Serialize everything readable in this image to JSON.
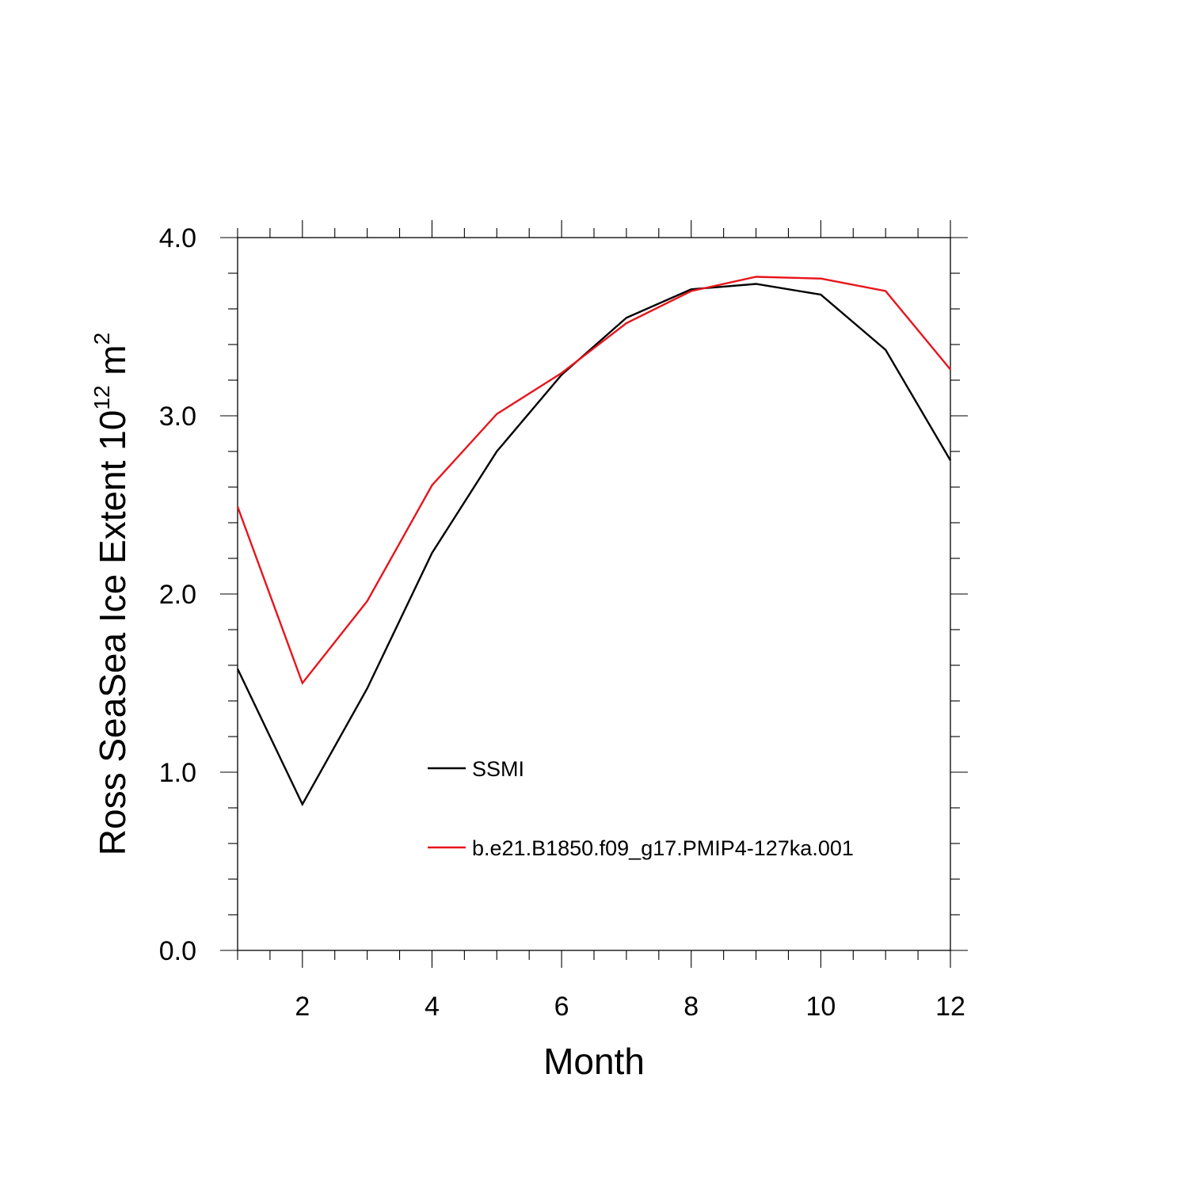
{
  "chart_data": {
    "type": "line",
    "title": "",
    "xlabel": "Month",
    "ylabel": {
      "prefix": "Ross SeaSea Ice Extent 10",
      "superscript": "12",
      "unit": " m",
      "unit_superscript": "2"
    },
    "xlim": [
      1,
      12
    ],
    "ylim": [
      0,
      4
    ],
    "x_ticks": [
      2,
      4,
      6,
      8,
      10,
      12
    ],
    "x_tick_labels": [
      "2",
      "4",
      "6",
      "8",
      "10",
      "12"
    ],
    "y_ticks": [
      0,
      1,
      2,
      3,
      4
    ],
    "y_tick_labels": [
      "0.0",
      "1.0",
      "2.0",
      "3.0",
      "4.0"
    ],
    "x": [
      1,
      2,
      3,
      4,
      5,
      6,
      7,
      8,
      9,
      10,
      11,
      12
    ],
    "series": [
      {
        "name": "SSMI",
        "color": "#000000",
        "values": [
          1.58,
          0.82,
          1.47,
          2.23,
          2.8,
          3.23,
          3.55,
          3.71,
          3.74,
          3.68,
          3.37,
          2.75
        ]
      },
      {
        "name": "b.e21.B1850.f09_g17.PMIP4-127ka.001",
        "color": "#e8141b",
        "values": [
          2.49,
          1.5,
          1.96,
          2.61,
          3.01,
          3.24,
          3.52,
          3.7,
          3.78,
          3.77,
          3.7,
          3.26
        ]
      }
    ],
    "legend_position": "inside-lower-center",
    "grid": false
  }
}
